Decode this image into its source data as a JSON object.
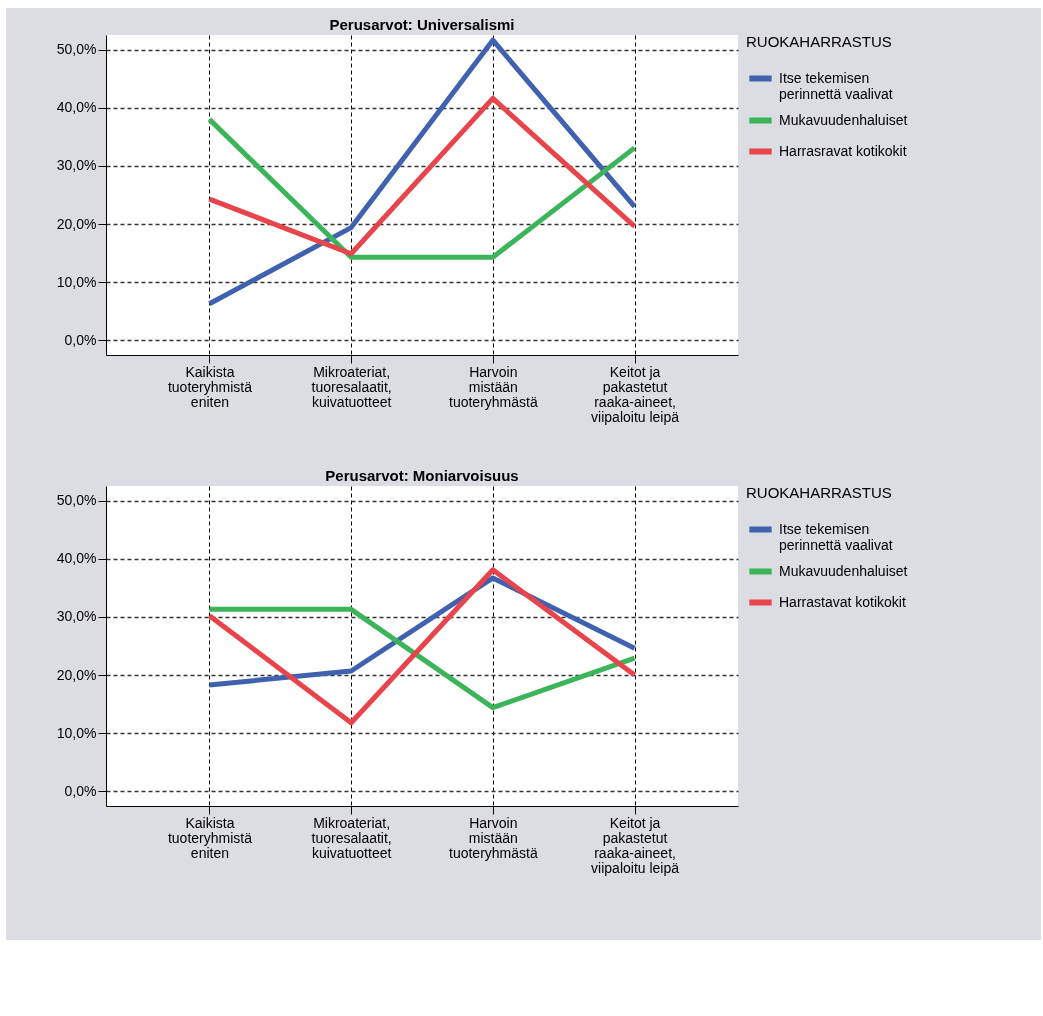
{
  "chart_data": [
    {
      "type": "line",
      "title": "Perusarvot: Universalismi",
      "legend_title": "RUOKAHARRASTUS",
      "legend": "top right",
      "grid": true,
      "line_style": "solid",
      "marker": "none",
      "categories": [
        "Kaikista\ntuoteryhmistä\neniten",
        "Mikroateriat,\ntuoresalaatit,\nkuivatuotteet",
        "Harvoin\nmistään\ntuoteryhmästä",
        "Keitot ja\npakastetut\nraaka-aineet,\nviipaloitu leipä"
      ],
      "ylim": [
        -2.5,
        52.5
      ],
      "yticks": [
        {
          "value": 0,
          "label": "0,0%"
        },
        {
          "value": 10,
          "label": "10,0%"
        },
        {
          "value": 20,
          "label": "20,0%"
        },
        {
          "value": 30,
          "label": "30,0%"
        },
        {
          "value": 40,
          "label": "40,0%"
        },
        {
          "value": 50,
          "label": "50,0%"
        }
      ],
      "series": [
        {
          "name": "Itse tekemisen\nperinnettä vaalivat",
          "color": "#4060b0",
          "values": [
            6.3,
            19.4,
            51.6,
            23.0
          ]
        },
        {
          "name": "Mukavuudenhaluiset",
          "color": "#3cb55a",
          "values": [
            38.0,
            14.3,
            14.3,
            33.1
          ]
        },
        {
          "name": "Harrasravat kotikokit",
          "color": "#e8444b",
          "values": [
            24.3,
            14.9,
            41.6,
            19.6
          ]
        }
      ]
    },
    {
      "type": "line",
      "title": "Perusarvot: Moniarvoisuus",
      "legend_title": "RUOKAHARRASTUS",
      "legend": "top right",
      "grid": true,
      "line_style": "solid",
      "marker": "none",
      "categories": [
        "Kaikista\ntuoteryhmistä\neniten",
        "Mikroateriat,\ntuoresalaatit,\nkuivatuotteet",
        "Harvoin\nmistään\ntuoteryhmästä",
        "Keitot ja\npakastetut\nraaka-aineet,\nviipaloitu leipä"
      ],
      "ylim": [
        -2.5,
        52.5
      ],
      "yticks": [
        {
          "value": 0,
          "label": "0,0%"
        },
        {
          "value": 10,
          "label": "10,0%"
        },
        {
          "value": 20,
          "label": "20,0%"
        },
        {
          "value": 30,
          "label": "30,0%"
        },
        {
          "value": 40,
          "label": "40,0%"
        },
        {
          "value": 50,
          "label": "50,0%"
        }
      ],
      "series": [
        {
          "name": "Itse tekemisen\nperinnettä vaalivat",
          "color": "#4060b0",
          "values": [
            18.3,
            20.7,
            36.7,
            24.6
          ]
        },
        {
          "name": "Mukavuudenhaluiset",
          "color": "#3cb55a",
          "values": [
            31.3,
            31.3,
            14.4,
            22.9
          ]
        },
        {
          "name": "Harrastavat kotikokit",
          "color": "#e8444b",
          "values": [
            30.2,
            11.8,
            38.1,
            20.0
          ]
        }
      ]
    }
  ]
}
